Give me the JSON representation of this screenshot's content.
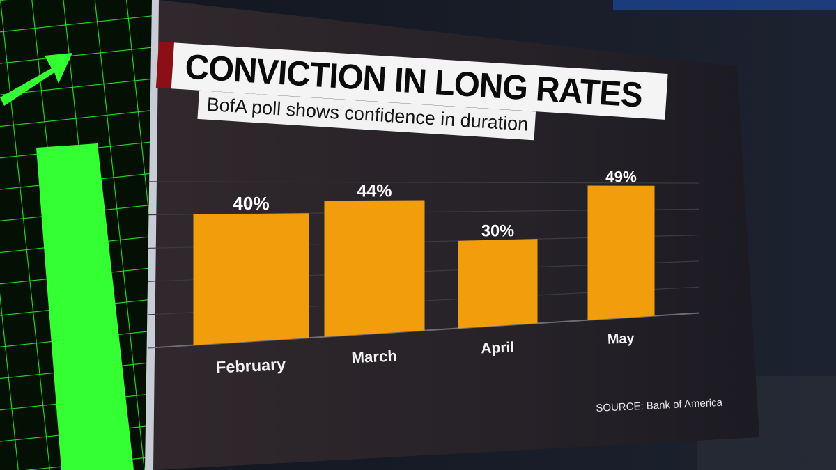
{
  "title": "CONVICTION IN LONG RATES",
  "subtitle": "BofA poll shows confidence in duration",
  "source": "SOURCE: Bank of America",
  "colors": {
    "bar": "#f29e0c",
    "accent": "#8a1016",
    "screen_left": "#30282c",
    "screen_right": "#1c1a22",
    "green": "#2dff2d"
  },
  "chart_data": {
    "type": "bar",
    "categories": [
      "February",
      "March",
      "April",
      "May"
    ],
    "values": [
      40,
      44,
      30,
      49
    ],
    "value_labels": [
      "40%",
      "44%",
      "30%",
      "49%"
    ],
    "title": "CONVICTION IN LONG RATES",
    "subtitle": "BofA poll shows confidence in duration",
    "xlabel": "",
    "ylabel": "",
    "ylim": [
      0,
      50
    ],
    "grid": true,
    "legend": "none"
  }
}
